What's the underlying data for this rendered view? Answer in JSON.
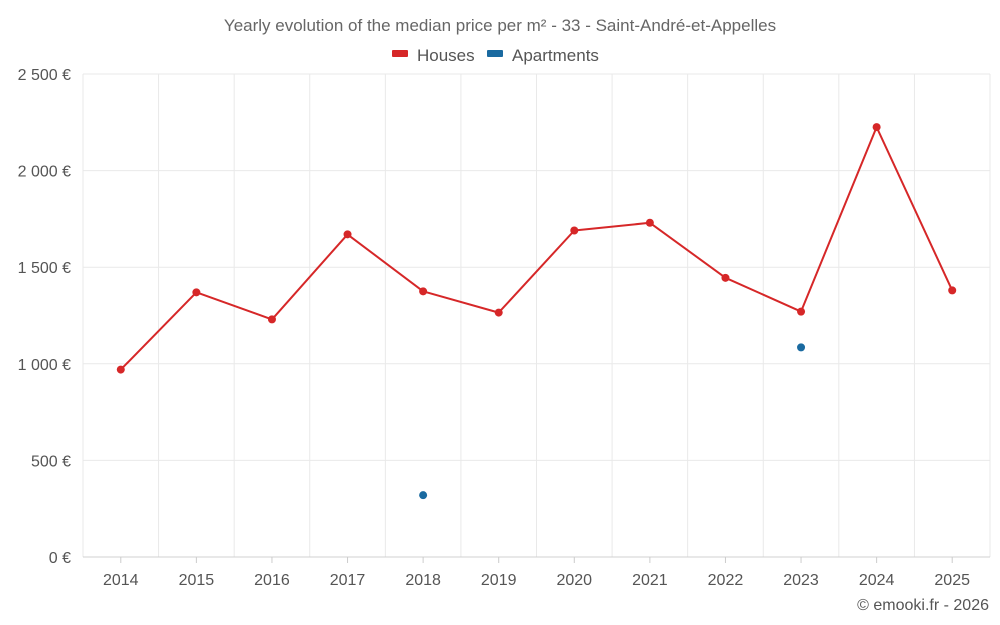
{
  "chart_data": {
    "type": "line",
    "title": "Yearly evolution of the median price per m² - 33 - Saint-André-et-Appelles",
    "categories": [
      "2014",
      "2015",
      "2016",
      "2017",
      "2018",
      "2019",
      "2020",
      "2021",
      "2022",
      "2023",
      "2024",
      "2025"
    ],
    "series": [
      {
        "name": "Houses",
        "color": "#d62728",
        "values": [
          970,
          1370,
          1230,
          1670,
          1375,
          1265,
          1690,
          1730,
          1445,
          1270,
          2225,
          1380
        ]
      },
      {
        "name": "Apartments",
        "color": "#1a6aa0",
        "values": [
          null,
          null,
          null,
          null,
          320,
          null,
          null,
          null,
          null,
          1085,
          null,
          null
        ]
      }
    ],
    "y_ticks": [
      {
        "value": 0,
        "label": "0 €"
      },
      {
        "value": 500,
        "label": "500 €"
      },
      {
        "value": 1000,
        "label": "1 000 €"
      },
      {
        "value": 1500,
        "label": "1 500 €"
      },
      {
        "value": 2000,
        "label": "2 000 €"
      },
      {
        "value": 2500,
        "label": "2 500 €"
      }
    ],
    "ylim": [
      0,
      2500
    ],
    "xlabel": "",
    "ylabel": "",
    "grid": true,
    "legend_position": "top-center"
  },
  "footer": "© emooki.fr - 2026"
}
